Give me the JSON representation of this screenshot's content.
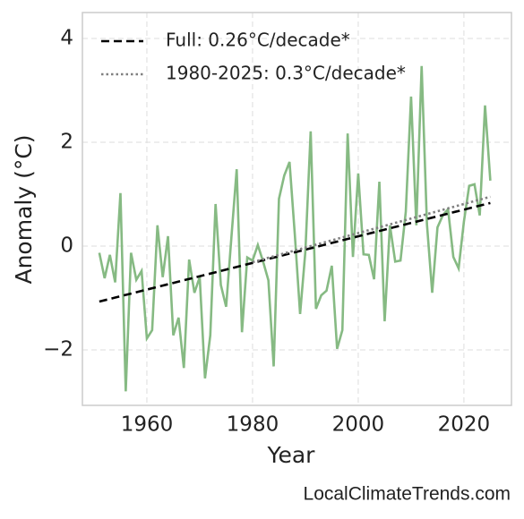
{
  "chart_data": {
    "type": "line",
    "xlabel": "Year",
    "ylabel": "Anomaly (°C)",
    "footer": "LocalClimateTrends.com",
    "xlim": [
      1947.8,
      2029
    ],
    "ylim": [
      -3.07,
      4.5
    ],
    "xticks": [
      1960,
      1980,
      2000,
      2020
    ],
    "yticks": [
      {
        "value": -2,
        "label": "−2"
      },
      0,
      2,
      4
    ],
    "grid": true,
    "legend": "upper left",
    "series": [
      {
        "color": "#86ba83",
        "style": "solid",
        "x": [
          1951,
          1952,
          1953,
          1954,
          1955,
          1956,
          1957,
          1958,
          1959,
          1960,
          1961,
          1962,
          1963,
          1964,
          1965,
          1966,
          1967,
          1968,
          1969,
          1970,
          1971,
          1972,
          1973,
          1974,
          1975,
          1976,
          1977,
          1978,
          1979,
          1980,
          1981,
          1982,
          1983,
          1984,
          1985,
          1986,
          1987,
          1988,
          1989,
          1990,
          1991,
          1992,
          1993,
          1994,
          1995,
          1996,
          1997,
          1998,
          1999,
          2000,
          2001,
          2002,
          2003,
          2004,
          2005,
          2006,
          2007,
          2008,
          2009,
          2010,
          2011,
          2012,
          2013,
          2014,
          2015,
          2016,
          2017,
          2018,
          2019,
          2020,
          2021,
          2022,
          2023,
          2024,
          2025
        ],
        "values": [
          -0.13,
          -0.62,
          -0.17,
          -0.7,
          1.02,
          -2.8,
          -0.13,
          -0.65,
          -0.48,
          -1.78,
          -1.62,
          0.4,
          -0.6,
          0.19,
          -1.72,
          -1.38,
          -2.35,
          -0.26,
          -0.9,
          -0.6,
          -2.55,
          -1.72,
          0.81,
          -0.75,
          -1.17,
          0.17,
          1.48,
          -1.66,
          -0.22,
          -0.28,
          0.02,
          -0.3,
          -0.66,
          -2.32,
          0.91,
          1.36,
          1.62,
          0.22,
          -1.31,
          -0.1,
          2.21,
          -1.21,
          -0.95,
          -0.86,
          -0.38,
          -1.98,
          -1.62,
          2.17,
          -0.21,
          1.4,
          -0.16,
          -0.17,
          -0.64,
          1.24,
          -1.45,
          0.4,
          -0.3,
          -0.28,
          0.66,
          2.88,
          0.4,
          3.47,
          0.43,
          -0.9,
          0.36,
          0.59,
          0.71,
          -0.21,
          -0.43,
          0.47,
          1.16,
          1.19,
          0.59,
          2.71,
          1.26
        ]
      },
      {
        "name": "Full: 0.26°C/decade*",
        "color": "#000000",
        "style": "dashed",
        "x": [
          1951,
          2025
        ],
        "values": [
          -1.07,
          0.83
        ]
      },
      {
        "name": "1980-2025: 0.3°C/decade*",
        "color": "#808080",
        "style": "dotted",
        "x": [
          1980,
          2025
        ],
        "values": [
          -0.31,
          0.95
        ]
      }
    ]
  }
}
